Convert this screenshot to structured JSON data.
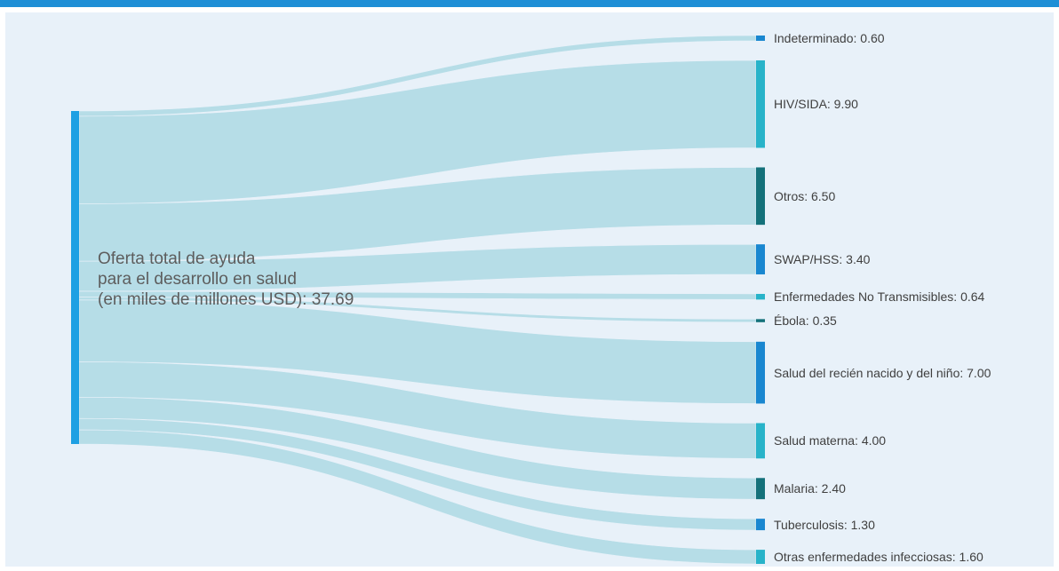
{
  "chart_data": {
    "type": "sankey",
    "unit": "USD (miles de millones)",
    "source": {
      "lines": [
        "Oferta total de ayuda",
        "para el desarrollo en salud",
        "(en miles de millones USD): 37.69"
      ],
      "value": 37.69,
      "color": "#1ea0e3"
    },
    "flow_color": "#b3dbe6",
    "targets": [
      {
        "name": "Indeterminado",
        "value": 0.6,
        "label": "Indeterminado: 0.60",
        "color": "#1987d0"
      },
      {
        "name": "HIV/SIDA",
        "value": 9.9,
        "label": "HIV/SIDA: 9.90",
        "color": "#28b3c9"
      },
      {
        "name": "Otros",
        "value": 6.5,
        "label": "Otros: 6.50",
        "color": "#14717a"
      },
      {
        "name": "SWAP/HSS",
        "value": 3.4,
        "label": "SWAP/HSS: 3.40",
        "color": "#1987d0"
      },
      {
        "name": "Enfermedades No Transmisibles",
        "value": 0.64,
        "label": "Enfermedades No Transmisibles: 0.64",
        "color": "#28b3c9"
      },
      {
        "name": "Ébola",
        "value": 0.35,
        "label": "Ébola: 0.35",
        "color": "#14717a"
      },
      {
        "name": "Salud del recién nacido y del niño",
        "value": 7.0,
        "label": "Salud del recién nacido y del niño: 7.00",
        "color": "#1987d0"
      },
      {
        "name": "Salud materna",
        "value": 4.0,
        "label": "Salud materna: 4.00",
        "color": "#28b3c9"
      },
      {
        "name": "Malaria",
        "value": 2.4,
        "label": "Malaria: 2.40",
        "color": "#14717a"
      },
      {
        "name": "Tuberculosis",
        "value": 1.3,
        "label": "Tuberculosis: 1.30",
        "color": "#1987d0"
      },
      {
        "name": "Otras enfermedades infecciosas",
        "value": 1.6,
        "label": "Otras enfermedades infecciosas: 1.60",
        "color": "#28b3c9"
      }
    ]
  }
}
